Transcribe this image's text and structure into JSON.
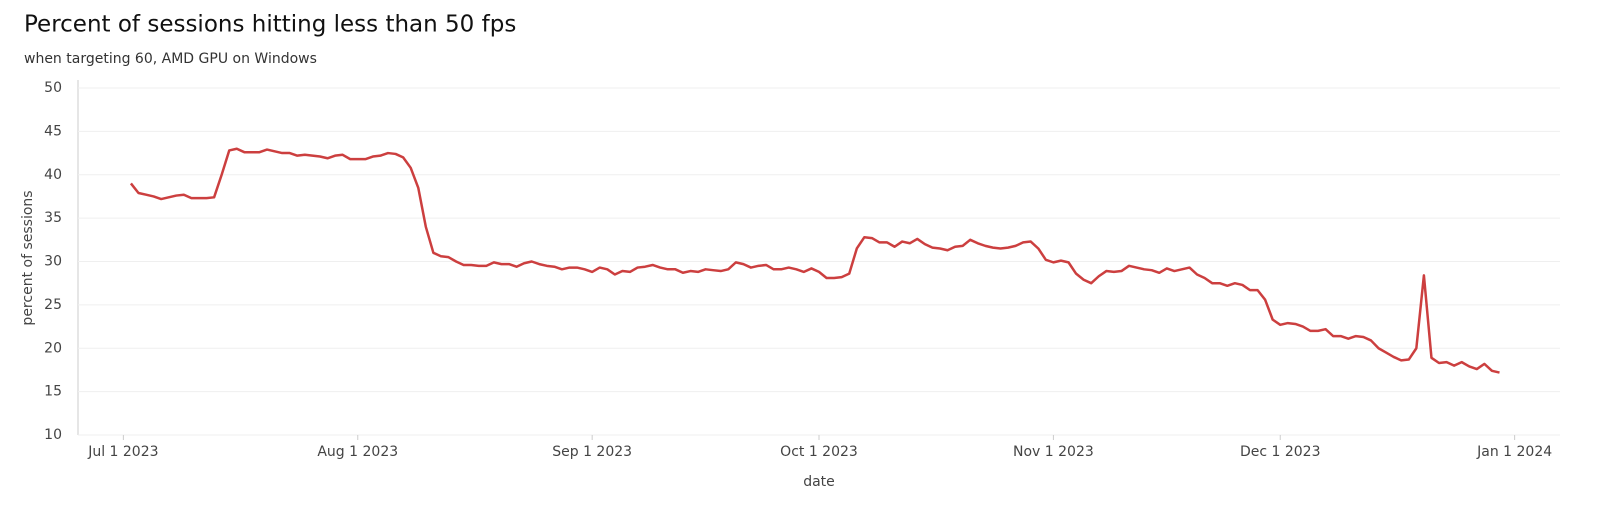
{
  "chart_data": {
    "type": "line",
    "title": "Percent of sessions hitting less than 50 fps",
    "subtitle": "when targeting 60, AMD GPU on Windows",
    "xlabel": "date",
    "ylabel": "percent of sessions",
    "x": [
      "2023-07-02",
      "2023-07-03",
      "2023-07-04",
      "2023-07-05",
      "2023-07-06",
      "2023-07-07",
      "2023-07-08",
      "2023-07-09",
      "2023-07-10",
      "2023-07-11",
      "2023-07-12",
      "2023-07-13",
      "2023-07-14",
      "2023-07-15",
      "2023-07-16",
      "2023-07-17",
      "2023-07-18",
      "2023-07-19",
      "2023-07-20",
      "2023-07-21",
      "2023-07-22",
      "2023-07-23",
      "2023-07-24",
      "2023-07-25",
      "2023-07-26",
      "2023-07-27",
      "2023-07-28",
      "2023-07-29",
      "2023-07-30",
      "2023-07-31",
      "2023-08-01",
      "2023-08-02",
      "2023-08-03",
      "2023-08-04",
      "2023-08-05",
      "2023-08-06",
      "2023-08-07",
      "2023-08-08",
      "2023-08-09",
      "2023-08-10",
      "2023-08-11",
      "2023-08-12",
      "2023-08-13",
      "2023-08-14",
      "2023-08-15",
      "2023-08-16",
      "2023-08-17",
      "2023-08-18",
      "2023-08-19",
      "2023-08-20",
      "2023-08-21",
      "2023-08-22",
      "2023-08-23",
      "2023-08-24",
      "2023-08-25",
      "2023-08-26",
      "2023-08-27",
      "2023-08-28",
      "2023-08-29",
      "2023-08-30",
      "2023-08-31",
      "2023-09-01",
      "2023-09-02",
      "2023-09-03",
      "2023-09-04",
      "2023-09-05",
      "2023-09-06",
      "2023-09-07",
      "2023-09-08",
      "2023-09-09",
      "2023-09-10",
      "2023-09-11",
      "2023-09-12",
      "2023-09-13",
      "2023-09-14",
      "2023-09-15",
      "2023-09-16",
      "2023-09-17",
      "2023-09-18",
      "2023-09-19",
      "2023-09-20",
      "2023-09-21",
      "2023-09-22",
      "2023-09-23",
      "2023-09-24",
      "2023-09-25",
      "2023-09-26",
      "2023-09-27",
      "2023-09-28",
      "2023-09-29",
      "2023-09-30",
      "2023-10-01",
      "2023-10-02",
      "2023-10-03",
      "2023-10-04",
      "2023-10-05",
      "2023-10-06",
      "2023-10-07",
      "2023-10-08",
      "2023-10-09",
      "2023-10-10",
      "2023-10-11",
      "2023-10-12",
      "2023-10-13",
      "2023-10-14",
      "2023-10-15",
      "2023-10-16",
      "2023-10-17",
      "2023-10-18",
      "2023-10-19",
      "2023-10-20",
      "2023-10-21",
      "2023-10-22",
      "2023-10-23",
      "2023-10-24",
      "2023-10-25",
      "2023-10-26",
      "2023-10-27",
      "2023-10-28",
      "2023-10-29",
      "2023-10-30",
      "2023-10-31",
      "2023-11-01",
      "2023-11-02",
      "2023-11-03",
      "2023-11-04",
      "2023-11-05",
      "2023-11-06",
      "2023-11-07",
      "2023-11-08",
      "2023-11-09",
      "2023-11-10",
      "2023-11-11",
      "2023-11-12",
      "2023-11-13",
      "2023-11-14",
      "2023-11-15",
      "2023-11-16",
      "2023-11-17",
      "2023-11-18",
      "2023-11-19",
      "2023-11-20",
      "2023-11-21",
      "2023-11-22",
      "2023-11-23",
      "2023-11-24",
      "2023-11-25",
      "2023-11-26",
      "2023-11-27",
      "2023-11-28",
      "2023-11-29",
      "2023-11-30",
      "2023-12-01",
      "2023-12-02",
      "2023-12-03",
      "2023-12-04",
      "2023-12-05",
      "2023-12-06",
      "2023-12-07",
      "2023-12-08",
      "2023-12-09",
      "2023-12-10",
      "2023-12-11",
      "2023-12-12",
      "2023-12-13",
      "2023-12-14",
      "2023-12-15",
      "2023-12-16",
      "2023-12-17",
      "2023-12-18",
      "2023-12-19",
      "2023-12-20",
      "2023-12-21",
      "2023-12-22",
      "2023-12-23",
      "2023-12-24",
      "2023-12-25",
      "2023-12-26",
      "2023-12-27",
      "2023-12-28",
      "2023-12-29",
      "2023-12-30"
    ],
    "series": [
      {
        "name": "percent of sessions",
        "color": "#cc3f3f",
        "values": [
          39.0,
          37.9,
          37.7,
          37.5,
          37.2,
          37.4,
          37.6,
          37.7,
          37.3,
          37.3,
          37.3,
          37.4,
          40.0,
          42.8,
          43.0,
          42.6,
          42.6,
          42.6,
          42.9,
          42.7,
          42.5,
          42.5,
          42.2,
          42.3,
          42.2,
          42.1,
          41.9,
          42.2,
          42.3,
          41.8,
          41.8,
          41.8,
          42.1,
          42.2,
          42.5,
          42.4,
          42.0,
          40.8,
          38.5,
          34.0,
          31.0,
          30.6,
          30.5,
          30.0,
          29.6,
          29.6,
          29.5,
          29.5,
          29.9,
          29.7,
          29.7,
          29.4,
          29.8,
          30.0,
          29.7,
          29.5,
          29.4,
          29.1,
          29.3,
          29.3,
          29.1,
          28.8,
          29.3,
          29.1,
          28.5,
          28.9,
          28.8,
          29.3,
          29.4,
          29.6,
          29.3,
          29.1,
          29.1,
          28.7,
          28.9,
          28.8,
          29.1,
          29.0,
          28.9,
          29.1,
          29.9,
          29.7,
          29.3,
          29.5,
          29.6,
          29.1,
          29.1,
          29.3,
          29.1,
          28.8,
          29.2,
          28.8,
          28.1,
          28.1,
          28.2,
          28.6,
          31.5,
          32.8,
          32.7,
          32.2,
          32.2,
          31.7,
          32.3,
          32.1,
          32.6,
          32.0,
          31.6,
          31.5,
          31.3,
          31.7,
          31.8,
          32.5,
          32.1,
          31.8,
          31.6,
          31.5,
          31.6,
          31.8,
          32.2,
          32.3,
          31.5,
          30.2,
          29.9,
          30.1,
          29.9,
          28.6,
          27.9,
          27.5,
          28.3,
          28.9,
          28.8,
          28.9,
          29.5,
          29.3,
          29.1,
          29.0,
          28.7,
          29.2,
          28.9,
          29.1,
          29.3,
          28.5,
          28.1,
          27.5,
          27.5,
          27.2,
          27.5,
          27.3,
          26.7,
          26.7,
          25.6,
          23.3,
          22.7,
          22.9,
          22.8,
          22.5,
          22.0,
          22.0,
          22.2,
          21.4,
          21.4,
          21.1,
          21.4,
          21.3,
          20.9,
          20.0,
          19.5,
          19.0,
          18.6,
          18.7,
          20.0,
          28.4,
          18.9,
          18.3,
          18.4,
          18.0,
          18.4,
          17.9,
          17.6,
          18.2,
          17.4,
          17.2
        ]
      }
    ],
    "xlim": [
      "2023-06-25",
      "2024-01-07"
    ],
    "xticks": [
      {
        "value": "2023-07-01",
        "label": "Jul 1 2023"
      },
      {
        "value": "2023-08-01",
        "label": "Aug 1 2023"
      },
      {
        "value": "2023-09-01",
        "label": "Sep 1 2023"
      },
      {
        "value": "2023-10-01",
        "label": "Oct 1 2023"
      },
      {
        "value": "2023-11-01",
        "label": "Nov 1 2023"
      },
      {
        "value": "2023-12-01",
        "label": "Dec 1 2023"
      },
      {
        "value": "2024-01-01",
        "label": "Jan 1 2024"
      }
    ],
    "ylim": [
      10,
      50
    ],
    "yticks": [
      10,
      15,
      20,
      25,
      30,
      35,
      40,
      45,
      50
    ],
    "grid": true
  }
}
